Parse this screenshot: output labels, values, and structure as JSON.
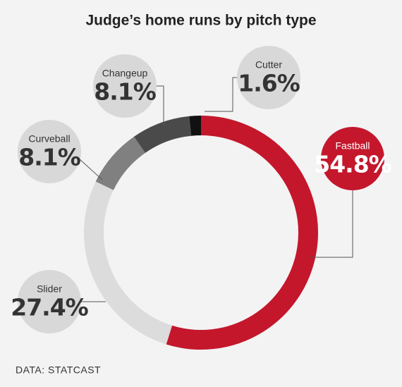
{
  "chart_data": {
    "type": "donut",
    "title": "Judge’s home runs by pitch type",
    "categories": [
      "Fastball",
      "Slider",
      "Curveball",
      "Changeup",
      "Cutter"
    ],
    "values": [
      54.8,
      27.4,
      8.1,
      8.1,
      1.6
    ],
    "value_labels": [
      "54.8%",
      "27.4%",
      "8.1%",
      "8.1%",
      "1.6%"
    ],
    "colors": [
      "#c4172c",
      "#dcdcdc",
      "#808080",
      "#4a4a4a",
      "#111111"
    ],
    "source": "DATA: STATCAST"
  }
}
